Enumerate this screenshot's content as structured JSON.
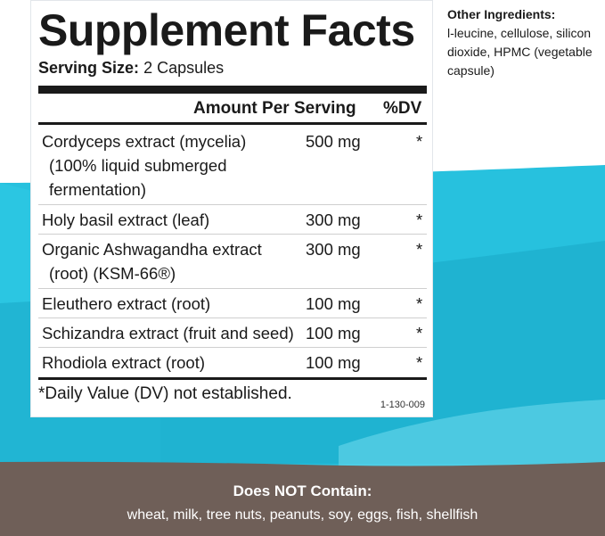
{
  "colors": {
    "teal_light": "#27c1de",
    "teal_dark": "#1aa7c6",
    "brown": "#6f5f58",
    "text": "#1a1a1a"
  },
  "label": {
    "title": "Supplement Facts",
    "serving_label": "Serving Size:",
    "serving_value": "2 Capsules",
    "header_amount": "Amount Per Serving",
    "header_dv": "%DV",
    "rows": [
      {
        "name": "Cordyceps extract (mycelia)",
        "sub": "(100% liquid submerged fermentation)",
        "amount": "500  mg",
        "dv": "*"
      },
      {
        "name": "Holy basil extract (leaf)",
        "sub": "",
        "amount": "300  mg",
        "dv": "*"
      },
      {
        "name": "Organic Ashwagandha extract",
        "sub": "(root) (KSM-66®)",
        "amount": "300  mg",
        "dv": "*"
      },
      {
        "name": "Eleuthero extract (root)",
        "sub": "",
        "amount": "100  mg",
        "dv": "*"
      },
      {
        "name": "Schizandra extract (fruit and seed)",
        "sub": "",
        "amount": "100  mg",
        "dv": "*"
      },
      {
        "name": "Rhodiola extract (root)",
        "sub": "",
        "amount": "100  mg",
        "dv": "*"
      }
    ],
    "footnote": "*Daily Value (DV) not established.",
    "code": "1-130-009"
  },
  "other_ingredients": {
    "heading": "Other Ingredients:",
    "text": "l-leucine, cellulose, silicon dioxide, HPMC (vegetable capsule)"
  },
  "does_not_contain": {
    "heading": "Does NOT Contain:",
    "text": "wheat, milk, tree nuts, peanuts, soy, eggs, fish, shellfish"
  }
}
